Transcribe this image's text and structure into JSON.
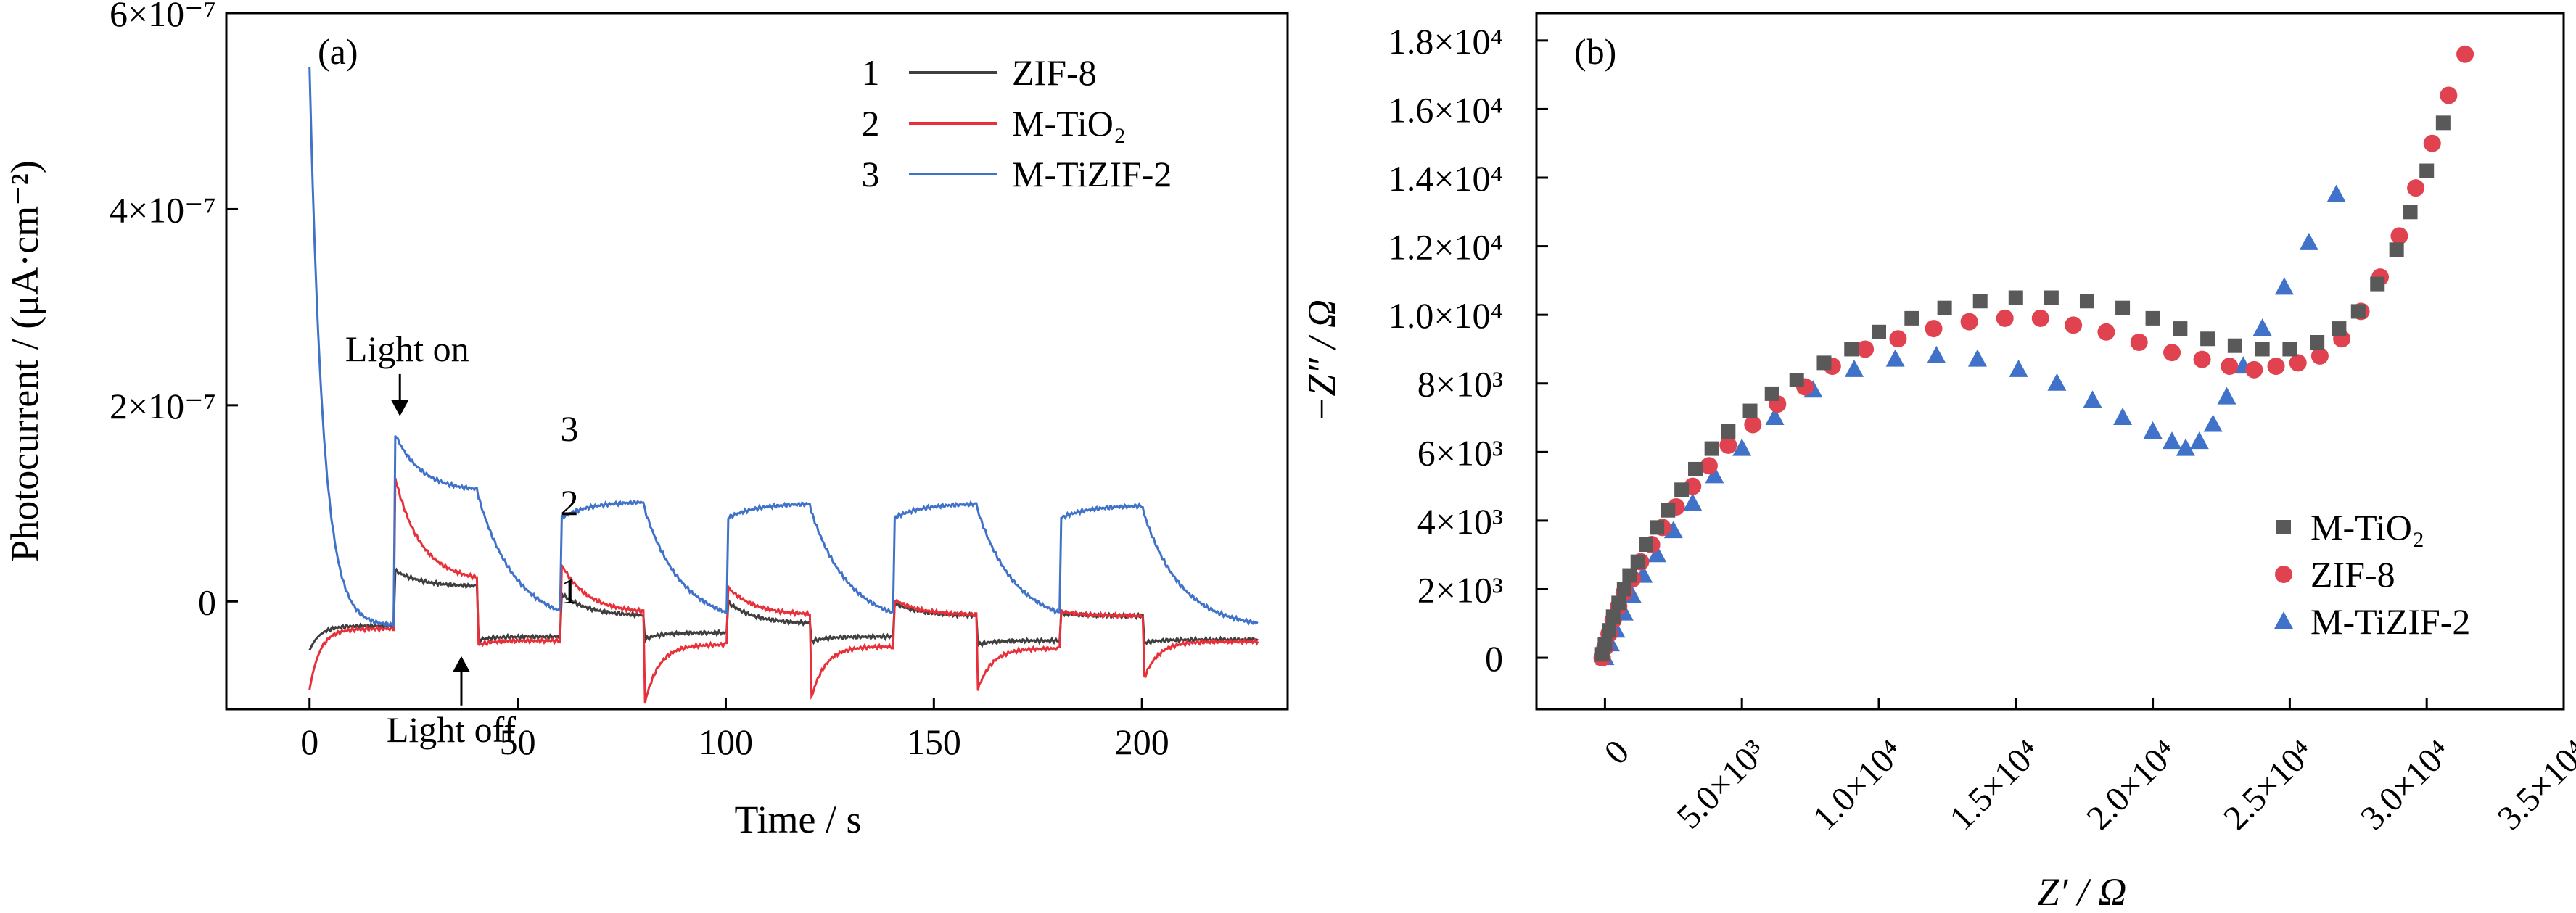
{
  "chart_data": [
    {
      "type": "line",
      "panel_label": "(a)",
      "xlabel": "Time / s",
      "ylabel": "Photocurrent / (μA·cm⁻²)",
      "xlim": [
        -20,
        235
      ],
      "ylim": [
        -1.1e-07,
        6e-07
      ],
      "x_ticks": [
        0,
        50,
        100,
        150,
        200
      ],
      "x_tick_labels": [
        "0",
        "50",
        "100",
        "150",
        "200"
      ],
      "y_ticks": [
        0,
        2e-07,
        4e-07,
        6e-07
      ],
      "y_tick_labels": [
        "0",
        "2×10⁻⁷",
        "4×10⁻⁷",
        "6×10⁻⁷"
      ],
      "grid": false,
      "legend_position": "top-right",
      "light_on_times": [
        20,
        60,
        100,
        140,
        180
      ],
      "light_off_times": [
        40,
        80,
        120,
        160,
        200
      ],
      "end_time": 228,
      "series": [
        {
          "number": "1",
          "name": "ZIF-8",
          "color": "#3f3f3f",
          "start_value": -5e-08,
          "dark_value": -2.5e-08,
          "on_peaks": [
            3.3e-08,
            1e-08,
            1.2e-09,
            -6e-10,
            -1.2e-08
          ],
          "on_end": [
            1.5e-08,
            -1.5e-08,
            -2.3e-08,
            -1.5e-08,
            -1.5e-08
          ],
          "off_dips": [
            -4e-08,
            -4e-08,
            -4.2e-08,
            -4.5e-08,
            -4.3e-08
          ],
          "off_end": [
            -3.6e-08,
            -3.2e-08,
            -3.6e-08,
            -4e-08,
            -3.9e-08
          ]
        },
        {
          "number": "2",
          "name": "M-TiO₂",
          "color": "#e8303a",
          "start_value": -9e-08,
          "dark_value": -2.8e-08,
          "on_peaks": [
            1.36e-07,
            4.2e-08,
            1.7e-08,
            3e-09,
            -1e-08
          ],
          "on_end": [
            2e-08,
            -1.2e-08,
            -1.4e-08,
            -1.4e-08,
            -1.5e-08
          ],
          "off_dips": [
            -4.5e-08,
            -1.15e-07,
            -1.08e-07,
            -9.8e-08,
            -8.5e-08
          ],
          "off_end": [
            -4e-08,
            -4.4e-08,
            -4.6e-08,
            -4.8e-08,
            -4.1e-08
          ]
        },
        {
          "number": "3",
          "name": "M-TiZIF-2",
          "color": "#3f72c8",
          "start_value": 5.45e-07,
          "dark_value": -2.5e-08,
          "on_peaks": [
            1.76e-07,
            8.4e-08,
            8.4e-08,
            8.4e-08,
            8.4e-08
          ],
          "on_end": [
            1.12e-07,
            1.02e-07,
            1e-07,
            1e-07,
            9.8e-08
          ],
          "off_dips": [
            -5e-09,
            5e-09,
            5e-09,
            5e-09,
            5e-09
          ],
          "off_end": [
            -2.5e-08,
            -2.5e-08,
            -2.5e-08,
            -2.5e-08,
            -2.8e-08
          ]
        }
      ],
      "annotations": [
        {
          "text": "Light on",
          "at": [
            21,
            1.8e-07
          ],
          "arrow": "down"
        },
        {
          "text": "Light off",
          "at": [
            41,
            -1e-08
          ],
          "arrow": "up"
        },
        {
          "text": "3",
          "at": [
            69,
            1.2e-07
          ]
        },
        {
          "text": "2",
          "at": [
            69,
            5.5e-08
          ]
        },
        {
          "text": "1",
          "at": [
            69,
            -4e-08
          ]
        }
      ]
    },
    {
      "type": "scatter",
      "panel_label": "(b)",
      "xlabel": "Z′ / Ω",
      "ylabel": "−Z″ / Ω",
      "xlim": [
        -2500,
        35000
      ],
      "ylim": [
        -1500,
        18800
      ],
      "x_ticks": [
        0,
        5000,
        10000,
        15000,
        20000,
        25000,
        30000,
        35000
      ],
      "x_tick_labels": [
        "0",
        "5.0×10³",
        "1.0×10⁴",
        "1.5×10⁴",
        "2.0×10⁴",
        "2.5×10⁴",
        "3.0×10⁴",
        "3.5×10⁴"
      ],
      "y_ticks": [
        0,
        2000,
        4000,
        6000,
        8000,
        10000,
        12000,
        14000,
        16000,
        18000
      ],
      "y_tick_labels": [
        "0",
        "2×10³",
        "4×10³",
        "6×10³",
        "8×10³",
        "1.0×10⁴",
        "1.2×10⁴",
        "1.4×10⁴",
        "1.6×10⁴",
        "1.8×10⁴"
      ],
      "grid": false,
      "legend_position": "bottom-right",
      "series": [
        {
          "name": "M-TiO₂",
          "marker": "square",
          "color": "#595959",
          "points": [
            [
              -100,
              100
            ],
            [
              0,
              400
            ],
            [
              150,
              800
            ],
            [
              300,
              1200
            ],
            [
              500,
              1600
            ],
            [
              700,
              2000
            ],
            [
              900,
              2400
            ],
            [
              1200,
              2800
            ],
            [
              1500,
              3300
            ],
            [
              1900,
              3800
            ],
            [
              2300,
              4300
            ],
            [
              2800,
              4900
            ],
            [
              3300,
              5500
            ],
            [
              3900,
              6100
            ],
            [
              4500,
              6600
            ],
            [
              5300,
              7200
            ],
            [
              6100,
              7700
            ],
            [
              7000,
              8100
            ],
            [
              8000,
              8600
            ],
            [
              9000,
              9000
            ],
            [
              10000,
              9500
            ],
            [
              11200,
              9900
            ],
            [
              12400,
              10200
            ],
            [
              13700,
              10400
            ],
            [
              15000,
              10500
            ],
            [
              16300,
              10500
            ],
            [
              17600,
              10400
            ],
            [
              18900,
              10200
            ],
            [
              20000,
              9900
            ],
            [
              21000,
              9600
            ],
            [
              22000,
              9300
            ],
            [
              23000,
              9100
            ],
            [
              24000,
              9000
            ],
            [
              25000,
              9000
            ],
            [
              26000,
              9200
            ],
            [
              26800,
              9600
            ],
            [
              27500,
              10100
            ],
            [
              28200,
              10900
            ],
            [
              28900,
              11900
            ],
            [
              29400,
              13000
            ],
            [
              30000,
              14200
            ],
            [
              30600,
              15600
            ]
          ]
        },
        {
          "name": "ZIF-8",
          "marker": "circle",
          "color": "#e0434f",
          "points": [
            [
              -100,
              0
            ],
            [
              0,
              300
            ],
            [
              150,
              700
            ],
            [
              300,
              1100
            ],
            [
              500,
              1500
            ],
            [
              700,
              1900
            ],
            [
              1000,
              2300
            ],
            [
              1300,
              2800
            ],
            [
              1700,
              3300
            ],
            [
              2100,
              3800
            ],
            [
              2600,
              4400
            ],
            [
              3200,
              5000
            ],
            [
              3800,
              5600
            ],
            [
              4500,
              6200
            ],
            [
              5400,
              6800
            ],
            [
              6300,
              7400
            ],
            [
              7300,
              7900
            ],
            [
              8300,
              8500
            ],
            [
              9500,
              9000
            ],
            [
              10700,
              9300
            ],
            [
              12000,
              9600
            ],
            [
              13300,
              9800
            ],
            [
              14600,
              9900
            ],
            [
              15900,
              9900
            ],
            [
              17100,
              9700
            ],
            [
              18300,
              9500
            ],
            [
              19500,
              9200
            ],
            [
              20700,
              8900
            ],
            [
              21800,
              8700
            ],
            [
              22800,
              8500
            ],
            [
              23700,
              8400
            ],
            [
              24500,
              8500
            ],
            [
              25300,
              8600
            ],
            [
              26100,
              8800
            ],
            [
              26900,
              9300
            ],
            [
              27600,
              10100
            ],
            [
              28300,
              11100
            ],
            [
              29000,
              12300
            ],
            [
              29600,
              13700
            ],
            [
              30200,
              15000
            ],
            [
              30800,
              16400
            ],
            [
              31400,
              17600
            ]
          ]
        },
        {
          "name": "M-TiZIF-2",
          "marker": "triangle",
          "color": "#3f72c8",
          "points": [
            [
              0,
              0
            ],
            [
              200,
              400
            ],
            [
              400,
              800
            ],
            [
              700,
              1300
            ],
            [
              1000,
              1800
            ],
            [
              1400,
              2400
            ],
            [
              1900,
              3000
            ],
            [
              2500,
              3700
            ],
            [
              3200,
              4500
            ],
            [
              4000,
              5300
            ],
            [
              5000,
              6100
            ],
            [
              6200,
              7000
            ],
            [
              7600,
              7800
            ],
            [
              9100,
              8400
            ],
            [
              10600,
              8700
            ],
            [
              12100,
              8800
            ],
            [
              13600,
              8700
            ],
            [
              15100,
              8400
            ],
            [
              16500,
              8000
            ],
            [
              17800,
              7500
            ],
            [
              18900,
              7000
            ],
            [
              20000,
              6600
            ],
            [
              20700,
              6300
            ],
            [
              21200,
              6100
            ],
            [
              21700,
              6300
            ],
            [
              22200,
              6800
            ],
            [
              22700,
              7600
            ],
            [
              23300,
              8500
            ],
            [
              24000,
              9600
            ],
            [
              24800,
              10800
            ],
            [
              25700,
              12100
            ],
            [
              26700,
              13500
            ]
          ]
        }
      ]
    }
  ]
}
